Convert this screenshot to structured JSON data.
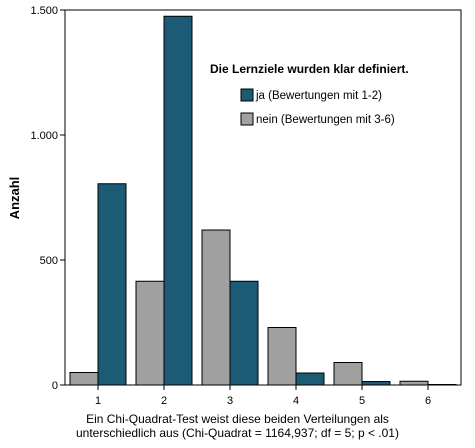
{
  "chart_data": {
    "type": "bar",
    "categories": [
      "1",
      "2",
      "3",
      "4",
      "5",
      "6"
    ],
    "series": [
      {
        "name": "nein (Bewertungen mit 3-6)",
        "color": "#a0a0a0",
        "values": [
          50,
          415,
          620,
          230,
          90,
          15
        ]
      },
      {
        "name": "ja (Bewertungen mit 1-2)",
        "color": "#1b5b75",
        "values": [
          805,
          1475,
          415,
          48,
          14,
          2
        ]
      }
    ],
    "title": "",
    "xlabel": "",
    "ylabel": "Anzahl",
    "ylim": [
      0,
      1500
    ],
    "yticks": [
      0,
      500,
      1000,
      1500
    ],
    "ytick_labels": [
      "0",
      "500",
      "1.000",
      "1.500"
    ],
    "legend_title": "Die Lernziele wurden klar definiert.",
    "legend_order": [
      1,
      0
    ],
    "legend_position": "top-right",
    "grid": false
  },
  "caption": {
    "line1": "Ein Chi-Quadrat-Test weist diese beiden Verteilungen als",
    "line2": "unterschiedlich aus (Chi-Quadrat = 1164,937; df = 5; p < .01)"
  }
}
